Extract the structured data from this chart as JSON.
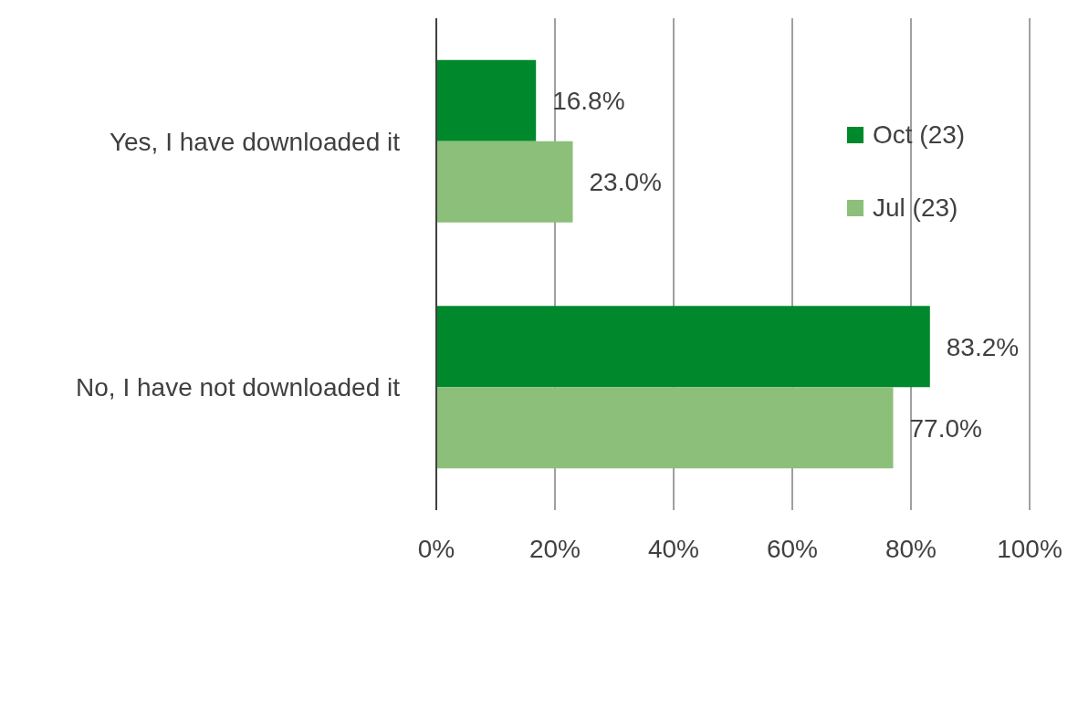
{
  "chart_data": {
    "type": "bar",
    "orientation": "horizontal",
    "categories": [
      "Yes, I have downloaded it",
      "No, I have not downloaded it"
    ],
    "series": [
      {
        "name": "Oct (23)",
        "color": "#00892c",
        "values": [
          16.8,
          83.2
        ],
        "value_labels": [
          "16.8%",
          "83.2%"
        ]
      },
      {
        "name": "Jul (23)",
        "color": "#8cbf79",
        "values": [
          23.0,
          77.0
        ],
        "value_labels": [
          "23.0%",
          "77.0%"
        ]
      }
    ],
    "xlim": [
      0,
      100
    ],
    "xticks": [
      {
        "value": 0,
        "label": "0%"
      },
      {
        "value": 20,
        "label": "20%"
      },
      {
        "value": 40,
        "label": "40%"
      },
      {
        "value": 60,
        "label": "60%"
      },
      {
        "value": 80,
        "label": "80%"
      },
      {
        "value": 100,
        "label": "100%"
      }
    ],
    "grid": "x",
    "legend": "top right"
  }
}
